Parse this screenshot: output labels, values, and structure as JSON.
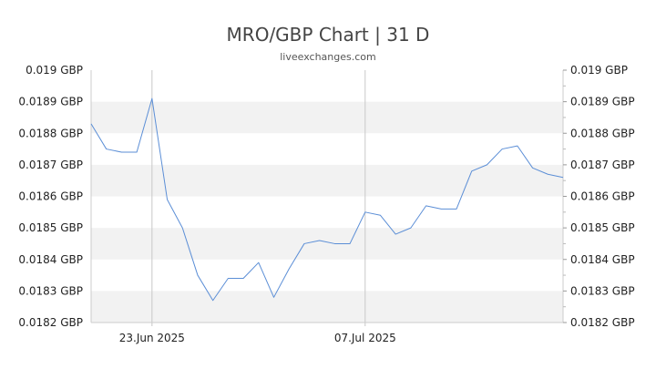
{
  "chart_data": {
    "type": "line",
    "title": "MRO/GBP Chart | 31 D",
    "subtitle": "liveexchanges.com",
    "xlabel": "",
    "ylabel": "",
    "ylim": [
      0.0182,
      0.019
    ],
    "y_ticks": [
      "0.019 GBP",
      "0.0189 GBP",
      "0.0188 GBP",
      "0.0187 GBP",
      "0.0186 GBP",
      "0.0185 GBP",
      "0.0184 GBP",
      "0.0183 GBP",
      "0.0182 GBP"
    ],
    "y_tick_values": [
      0.019,
      0.0189,
      0.0188,
      0.0187,
      0.0186,
      0.0185,
      0.0184,
      0.0183,
      0.0182
    ],
    "x_ticks": [
      {
        "label": "23.Jun 2025",
        "day": 4
      },
      {
        "label": "07.Jul 2025",
        "day": 18
      }
    ],
    "x_range": [
      0,
      31
    ],
    "grid": true,
    "line_color": "#5b8ed6",
    "band_color": "#f2f2f2",
    "series": [
      {
        "values": [
          0.01883,
          0.01875,
          0.01874,
          0.01874,
          0.01891,
          0.01859,
          0.0185,
          0.01835,
          0.01827,
          0.01834,
          0.01834,
          0.01839,
          0.01828,
          0.01837,
          0.01845,
          0.01846,
          0.01845,
          0.01845,
          0.01855,
          0.01854,
          0.01848,
          0.0185,
          0.01857,
          0.01856,
          0.01856,
          0.01868,
          0.0187,
          0.01875,
          0.01876,
          0.01869,
          0.01867,
          0.01866
        ]
      }
    ]
  }
}
